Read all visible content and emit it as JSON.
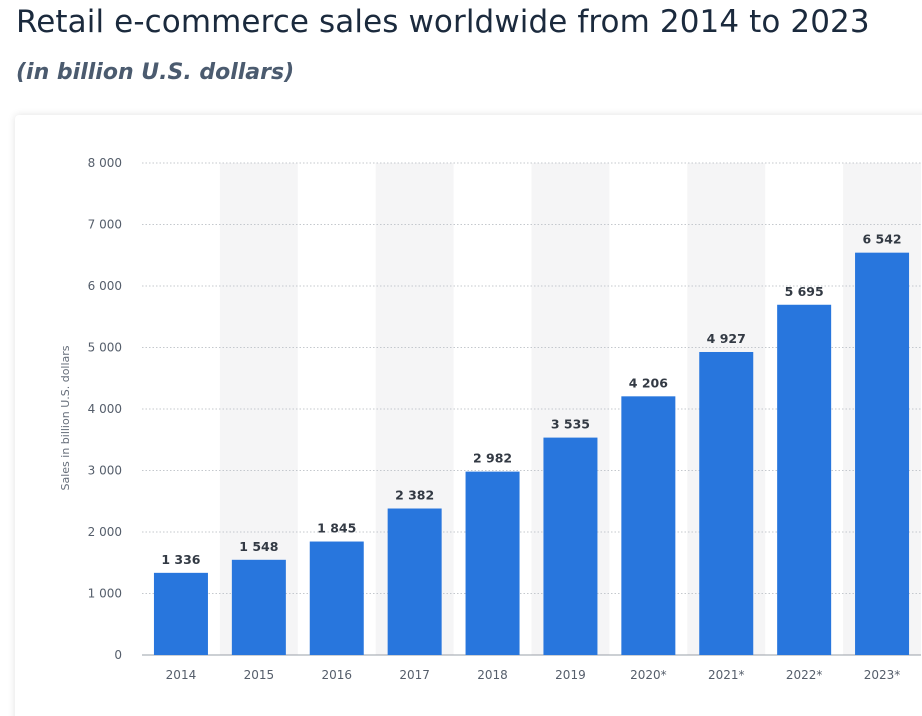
{
  "header": {
    "title": "Retail e-commerce sales worldwide from 2014 to 2023",
    "subtitle": "(in billion U.S. dollars)"
  },
  "chart_data": {
    "type": "bar",
    "categories": [
      "2014",
      "2015",
      "2016",
      "2017",
      "2018",
      "2019",
      "2020*",
      "2021*",
      "2022*",
      "2023*"
    ],
    "values": [
      1336,
      1548,
      1845,
      2382,
      2982,
      3535,
      4206,
      4927,
      5695,
      6542
    ],
    "value_labels": [
      "1 336",
      "1 548",
      "1 845",
      "2 382",
      "2 982",
      "3 535",
      "4 206",
      "4 927",
      "5 695",
      "6 542"
    ],
    "ylabel": "Sales in billion U.S. dollars",
    "ylim": [
      0,
      8000
    ],
    "yticks": [
      0,
      1000,
      2000,
      3000,
      4000,
      5000,
      6000,
      7000,
      8000
    ],
    "ytick_labels": [
      "0",
      "1 000",
      "2 000",
      "3 000",
      "4 000",
      "5 000",
      "6 000",
      "7 000",
      "8 000"
    ],
    "grid": true,
    "bar_color": "#2876dd",
    "band_color": "#f5f5f6"
  }
}
